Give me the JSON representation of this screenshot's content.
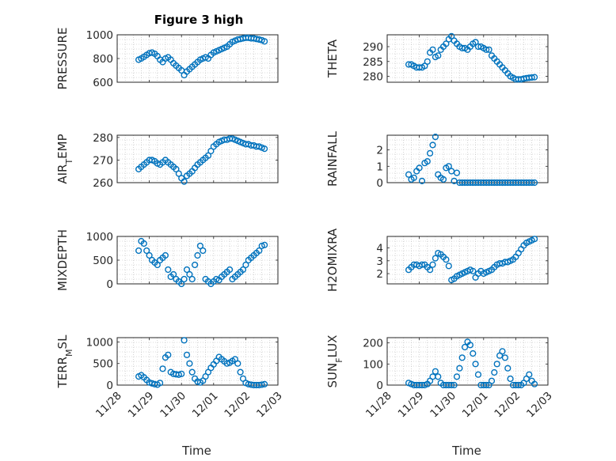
{
  "figure": {
    "title": "Figure 3 high",
    "xlabel": "Time",
    "marker_color": "#0072BD",
    "x_ticks": [
      "11/28",
      "11/29",
      "11/30",
      "12/01",
      "12/02",
      "12/03"
    ]
  },
  "chart_data": [
    {
      "type": "scatter",
      "marker": "circle",
      "title": "Figure 3 high",
      "ylabel": "PRESSURE",
      "ylim": [
        600,
        1000
      ],
      "yticks": [
        600,
        800,
        1000
      ],
      "xlabel": "",
      "grid": true,
      "xlim": [
        "11/28",
        "12/03"
      ],
      "x": [
        "11/28 16:00",
        "11/28 18:00",
        "11/28 20:00",
        "11/28 22:00",
        "11/29 00:00",
        "11/29 02:00",
        "11/29 04:00",
        "11/29 06:00",
        "11/29 08:00",
        "11/29 10:00",
        "11/29 12:00",
        "11/29 14:00",
        "11/29 16:00",
        "11/29 18:00",
        "11/29 20:00",
        "11/29 22:00",
        "11/30 00:00",
        "11/30 02:00",
        "11/30 04:00",
        "11/30 06:00",
        "11/30 08:00",
        "11/30 10:00",
        "11/30 12:00",
        "11/30 14:00",
        "11/30 16:00",
        "11/30 18:00",
        "11/30 20:00",
        "11/30 22:00",
        "12/01 00:00",
        "12/01 02:00",
        "12/01 04:00",
        "12/01 06:00",
        "12/01 08:00",
        "12/01 10:00",
        "12/01 12:00",
        "12/01 14:00",
        "12/01 16:00",
        "12/01 18:00",
        "12/01 20:00",
        "12/01 22:00",
        "12/02 00:00",
        "12/02 02:00",
        "12/02 04:00",
        "12/02 06:00",
        "12/02 08:00",
        "12/02 10:00",
        "12/02 12:00",
        "12/02 14:00"
      ],
      "y": [
        790,
        800,
        815,
        830,
        845,
        850,
        840,
        820,
        790,
        770,
        800,
        810,
        790,
        760,
        740,
        720,
        700,
        660,
        690,
        710,
        730,
        750,
        770,
        790,
        800,
        810,
        800,
        830,
        850,
        860,
        870,
        880,
        890,
        900,
        920,
        940,
        950,
        960,
        965,
        970,
        975,
        975,
        970,
        970,
        965,
        960,
        955,
        945
      ]
    },
    {
      "type": "scatter",
      "marker": "circle",
      "title": "",
      "ylabel": "THETA",
      "ylim": [
        278,
        294
      ],
      "yticks": [
        280,
        285,
        290
      ],
      "xlabel": "",
      "grid": true,
      "xlim": [
        "11/28",
        "12/03"
      ],
      "x": [
        "11/28 16:00",
        "11/28 18:00",
        "11/28 20:00",
        "11/28 22:00",
        "11/29 00:00",
        "11/29 02:00",
        "11/29 04:00",
        "11/29 06:00",
        "11/29 08:00",
        "11/29 10:00",
        "11/29 12:00",
        "11/29 14:00",
        "11/29 16:00",
        "11/29 18:00",
        "11/29 20:00",
        "11/29 22:00",
        "11/30 00:00",
        "11/30 02:00",
        "11/30 04:00",
        "11/30 06:00",
        "11/30 08:00",
        "11/30 10:00",
        "11/30 12:00",
        "11/30 14:00",
        "11/30 16:00",
        "11/30 18:00",
        "11/30 20:00",
        "11/30 22:00",
        "12/01 00:00",
        "12/01 02:00",
        "12/01 04:00",
        "12/01 06:00",
        "12/01 08:00",
        "12/01 10:00",
        "12/01 12:00",
        "12/01 14:00",
        "12/01 16:00",
        "12/01 18:00",
        "12/01 20:00",
        "12/01 22:00",
        "12/02 00:00",
        "12/02 02:00",
        "12/02 04:00",
        "12/02 06:00",
        "12/02 08:00",
        "12/02 10:00",
        "12/02 12:00",
        "12/02 14:00"
      ],
      "y": [
        284,
        284,
        283.5,
        283,
        283,
        283,
        283.5,
        285,
        288,
        289,
        286.5,
        287,
        289,
        290,
        291,
        292.5,
        293.5,
        292,
        291,
        290,
        289.5,
        289.5,
        289,
        290,
        291,
        291.5,
        290,
        290,
        289.5,
        289,
        289,
        287,
        286,
        285,
        284,
        283,
        282,
        281,
        280,
        279.5,
        279,
        279,
        279,
        279.2,
        279.4,
        279.5,
        279.6,
        279.7
      ]
    },
    {
      "type": "scatter",
      "marker": "circle",
      "title": "",
      "ylabel": "AIR_TEMP",
      "ylim": [
        260,
        281
      ],
      "yticks": [
        260,
        270,
        280
      ],
      "xlabel": "",
      "grid": true,
      "xlim": [
        "11/28",
        "12/03"
      ],
      "x": [
        "11/28 16:00",
        "11/28 18:00",
        "11/28 20:00",
        "11/28 22:00",
        "11/29 00:00",
        "11/29 02:00",
        "11/29 04:00",
        "11/29 06:00",
        "11/29 08:00",
        "11/29 10:00",
        "11/29 12:00",
        "11/29 14:00",
        "11/29 16:00",
        "11/29 18:00",
        "11/29 20:00",
        "11/29 22:00",
        "11/30 00:00",
        "11/30 02:00",
        "11/30 04:00",
        "11/30 06:00",
        "11/30 08:00",
        "11/30 10:00",
        "11/30 12:00",
        "11/30 14:00",
        "11/30 16:00",
        "11/30 18:00",
        "11/30 20:00",
        "11/30 22:00",
        "12/01 00:00",
        "12/01 02:00",
        "12/01 04:00",
        "12/01 06:00",
        "12/01 08:00",
        "12/01 10:00",
        "12/01 12:00",
        "12/01 14:00",
        "12/01 16:00",
        "12/01 18:00",
        "12/01 20:00",
        "12/01 22:00",
        "12/02 00:00",
        "12/02 02:00",
        "12/02 04:00",
        "12/02 06:00",
        "12/02 08:00",
        "12/02 10:00",
        "12/02 12:00",
        "12/02 14:00"
      ],
      "y": [
        266,
        267,
        268,
        269,
        270,
        270,
        269.5,
        268.5,
        268,
        269,
        270,
        269,
        268,
        267,
        266,
        264,
        262,
        260.5,
        263,
        264,
        265,
        266.5,
        268,
        269,
        270,
        271,
        272,
        274,
        276,
        277,
        278,
        278.5,
        279,
        279,
        279.5,
        279.5,
        279,
        278.5,
        278,
        277.5,
        277,
        277,
        276.5,
        276.5,
        276,
        276,
        275.5,
        275
      ]
    },
    {
      "type": "scatter",
      "marker": "circle",
      "title": "",
      "ylabel": "RAINFALL",
      "ylim": [
        0,
        2.9
      ],
      "yticks": [
        0,
        1,
        2
      ],
      "xlabel": "",
      "grid": true,
      "xlim": [
        "11/28",
        "12/03"
      ],
      "x": [
        "11/28 16:00",
        "11/28 18:00",
        "11/28 20:00",
        "11/28 22:00",
        "11/29 00:00",
        "11/29 02:00",
        "11/29 04:00",
        "11/29 06:00",
        "11/29 08:00",
        "11/29 10:00",
        "11/29 12:00",
        "11/29 14:00",
        "11/29 16:00",
        "11/29 18:00",
        "11/29 20:00",
        "11/29 22:00",
        "11/30 00:00",
        "11/30 02:00",
        "11/30 04:00",
        "11/30 06:00",
        "11/30 08:00",
        "11/30 10:00",
        "11/30 12:00",
        "11/30 14:00",
        "11/30 16:00",
        "11/30 18:00",
        "11/30 20:00",
        "11/30 22:00",
        "12/01 00:00",
        "12/01 02:00",
        "12/01 04:00",
        "12/01 06:00",
        "12/01 08:00",
        "12/01 10:00",
        "12/01 12:00",
        "12/01 14:00",
        "12/01 16:00",
        "12/01 18:00",
        "12/01 20:00",
        "12/01 22:00",
        "12/02 00:00",
        "12/02 02:00",
        "12/02 04:00",
        "12/02 06:00",
        "12/02 08:00",
        "12/02 10:00",
        "12/02 12:00",
        "12/02 14:00"
      ],
      "y": [
        0.5,
        0.2,
        0.3,
        0.7,
        0.9,
        0.1,
        1.2,
        1.3,
        1.8,
        2.3,
        2.8,
        0.5,
        0.3,
        0.2,
        0.9,
        1.0,
        0.7,
        0.1,
        0.6,
        0,
        0,
        0,
        0,
        0,
        0,
        0,
        0,
        0,
        0,
        0,
        0,
        0,
        0,
        0,
        0,
        0,
        0,
        0,
        0,
        0,
        0,
        0,
        0,
        0,
        0,
        0,
        0,
        0
      ]
    },
    {
      "type": "scatter",
      "marker": "circle",
      "title": "",
      "ylabel": "MIXDEPTH",
      "ylim": [
        0,
        1000
      ],
      "yticks": [
        0,
        500,
        1000
      ],
      "xlabel": "",
      "grid": true,
      "xlim": [
        "11/28",
        "12/03"
      ],
      "x": [
        "11/28 16:00",
        "11/28 18:00",
        "11/28 20:00",
        "11/28 22:00",
        "11/29 00:00",
        "11/29 02:00",
        "11/29 04:00",
        "11/29 06:00",
        "11/29 08:00",
        "11/29 10:00",
        "11/29 12:00",
        "11/29 14:00",
        "11/29 16:00",
        "11/29 18:00",
        "11/29 20:00",
        "11/29 22:00",
        "11/30 00:00",
        "11/30 02:00",
        "11/30 04:00",
        "11/30 06:00",
        "11/30 08:00",
        "11/30 10:00",
        "11/30 12:00",
        "11/30 14:00",
        "11/30 16:00",
        "11/30 18:00",
        "11/30 20:00",
        "11/30 22:00",
        "12/01 00:00",
        "12/01 02:00",
        "12/01 04:00",
        "12/01 06:00",
        "12/01 08:00",
        "12/01 10:00",
        "12/01 12:00",
        "12/01 14:00",
        "12/01 16:00",
        "12/01 18:00",
        "12/01 20:00",
        "12/01 22:00",
        "12/02 00:00",
        "12/02 02:00",
        "12/02 04:00",
        "12/02 06:00",
        "12/02 08:00",
        "12/02 10:00",
        "12/02 12:00",
        "12/02 14:00"
      ],
      "y": [
        700,
        900,
        850,
        700,
        600,
        500,
        450,
        400,
        500,
        550,
        600,
        300,
        150,
        200,
        100,
        50,
        0,
        100,
        300,
        200,
        100,
        400,
        600,
        800,
        700,
        100,
        50,
        0,
        50,
        100,
        80,
        150,
        200,
        250,
        300,
        100,
        150,
        200,
        250,
        300,
        400,
        500,
        550,
        600,
        650,
        700,
        800,
        820
      ]
    },
    {
      "type": "scatter",
      "marker": "circle",
      "title": "",
      "ylabel": "H2OMIXRA",
      "ylim": [
        1.2,
        4.9
      ],
      "yticks": [
        2,
        3,
        4
      ],
      "xlabel": "",
      "grid": true,
      "xlim": [
        "11/28",
        "12/03"
      ],
      "x": [
        "11/28 16:00",
        "11/28 18:00",
        "11/28 20:00",
        "11/28 22:00",
        "11/29 00:00",
        "11/29 02:00",
        "11/29 04:00",
        "11/29 06:00",
        "11/29 08:00",
        "11/29 10:00",
        "11/29 12:00",
        "11/29 14:00",
        "11/29 16:00",
        "11/29 18:00",
        "11/29 20:00",
        "11/29 22:00",
        "11/30 00:00",
        "11/30 02:00",
        "11/30 04:00",
        "11/30 06:00",
        "11/30 08:00",
        "11/30 10:00",
        "11/30 12:00",
        "11/30 14:00",
        "11/30 16:00",
        "11/30 18:00",
        "11/30 20:00",
        "11/30 22:00",
        "12/01 00:00",
        "12/01 02:00",
        "12/01 04:00",
        "12/01 06:00",
        "12/01 08:00",
        "12/01 10:00",
        "12/01 12:00",
        "12/01 14:00",
        "12/01 16:00",
        "12/01 18:00",
        "12/01 20:00",
        "12/01 22:00",
        "12/02 00:00",
        "12/02 02:00",
        "12/02 04:00",
        "12/02 06:00",
        "12/02 08:00",
        "12/02 10:00",
        "12/02 12:00",
        "12/02 14:00"
      ],
      "y": [
        2.3,
        2.5,
        2.7,
        2.7,
        2.6,
        2.7,
        2.7,
        2.5,
        2.3,
        2.7,
        3.2,
        3.6,
        3.5,
        3.3,
        3.1,
        2.6,
        1.5,
        1.6,
        1.8,
        1.9,
        2.0,
        2.1,
        2.2,
        2.3,
        2.2,
        1.7,
        2.0,
        2.2,
        2.0,
        2.1,
        2.2,
        2.3,
        2.5,
        2.7,
        2.8,
        2.8,
        2.9,
        2.9,
        3.0,
        3.1,
        3.3,
        3.6,
        3.9,
        4.2,
        4.4,
        4.5,
        4.6,
        4.7
      ]
    },
    {
      "type": "scatter",
      "marker": "circle",
      "title": "",
      "ylabel": "TERR_MSL",
      "ylim": [
        0,
        1100
      ],
      "yticks": [
        0,
        500,
        1000
      ],
      "xlabel": "Time",
      "grid": true,
      "xlim": [
        "11/28",
        "12/03"
      ],
      "x": [
        "11/28 16:00",
        "11/28 18:00",
        "11/28 20:00",
        "11/28 22:00",
        "11/29 00:00",
        "11/29 02:00",
        "11/29 04:00",
        "11/29 06:00",
        "11/29 08:00",
        "11/29 10:00",
        "11/29 12:00",
        "11/29 14:00",
        "11/29 16:00",
        "11/29 18:00",
        "11/29 20:00",
        "11/29 22:00",
        "11/30 00:00",
        "11/30 02:00",
        "11/30 04:00",
        "11/30 06:00",
        "11/30 08:00",
        "11/30 10:00",
        "11/30 12:00",
        "11/30 14:00",
        "11/30 16:00",
        "11/30 18:00",
        "11/30 20:00",
        "11/30 22:00",
        "12/01 00:00",
        "12/01 02:00",
        "12/01 04:00",
        "12/01 06:00",
        "12/01 08:00",
        "12/01 10:00",
        "12/01 12:00",
        "12/01 14:00",
        "12/01 16:00",
        "12/01 18:00",
        "12/01 20:00",
        "12/01 22:00",
        "12/02 00:00",
        "12/02 02:00",
        "12/02 04:00",
        "12/02 06:00",
        "12/02 08:00",
        "12/02 10:00",
        "12/02 12:00",
        "12/02 14:00"
      ],
      "y": [
        200,
        230,
        180,
        120,
        60,
        40,
        20,
        10,
        50,
        380,
        640,
        700,
        300,
        260,
        250,
        240,
        260,
        1040,
        700,
        500,
        300,
        150,
        80,
        60,
        100,
        200,
        300,
        400,
        480,
        560,
        650,
        600,
        550,
        500,
        520,
        560,
        600,
        500,
        300,
        150,
        50,
        20,
        10,
        0,
        0,
        0,
        10,
        20
      ]
    },
    {
      "type": "scatter",
      "marker": "circle",
      "title": "",
      "ylabel": "SUN_FLUX",
      "ylim": [
        0,
        225
      ],
      "yticks": [
        0,
        100,
        200
      ],
      "xlabel": "Time",
      "grid": true,
      "xlim": [
        "11/28",
        "12/03"
      ],
      "x": [
        "11/28 16:00",
        "11/28 18:00",
        "11/28 20:00",
        "11/28 22:00",
        "11/29 00:00",
        "11/29 02:00",
        "11/29 04:00",
        "11/29 06:00",
        "11/29 08:00",
        "11/29 10:00",
        "11/29 12:00",
        "11/29 14:00",
        "11/29 16:00",
        "11/29 18:00",
        "11/29 20:00",
        "11/29 22:00",
        "11/30 00:00",
        "11/30 02:00",
        "11/30 04:00",
        "11/30 06:00",
        "11/30 08:00",
        "11/30 10:00",
        "11/30 12:00",
        "11/30 14:00",
        "11/30 16:00",
        "11/30 18:00",
        "11/30 20:00",
        "11/30 22:00",
        "12/01 00:00",
        "12/01 02:00",
        "12/01 04:00",
        "12/01 06:00",
        "12/01 08:00",
        "12/01 10:00",
        "12/01 12:00",
        "12/01 14:00",
        "12/01 16:00",
        "12/01 18:00",
        "12/01 20:00",
        "12/01 22:00",
        "12/02 00:00",
        "12/02 02:00",
        "12/02 04:00",
        "12/02 06:00",
        "12/02 08:00",
        "12/02 10:00",
        "12/02 12:00",
        "12/02 14:00"
      ],
      "y": [
        10,
        5,
        0,
        0,
        0,
        0,
        0,
        5,
        20,
        40,
        65,
        40,
        10,
        0,
        0,
        0,
        0,
        0,
        40,
        80,
        130,
        180,
        205,
        190,
        150,
        100,
        50,
        0,
        0,
        0,
        0,
        20,
        60,
        100,
        140,
        160,
        130,
        80,
        30,
        0,
        0,
        0,
        0,
        10,
        30,
        50,
        20,
        5
      ]
    }
  ]
}
